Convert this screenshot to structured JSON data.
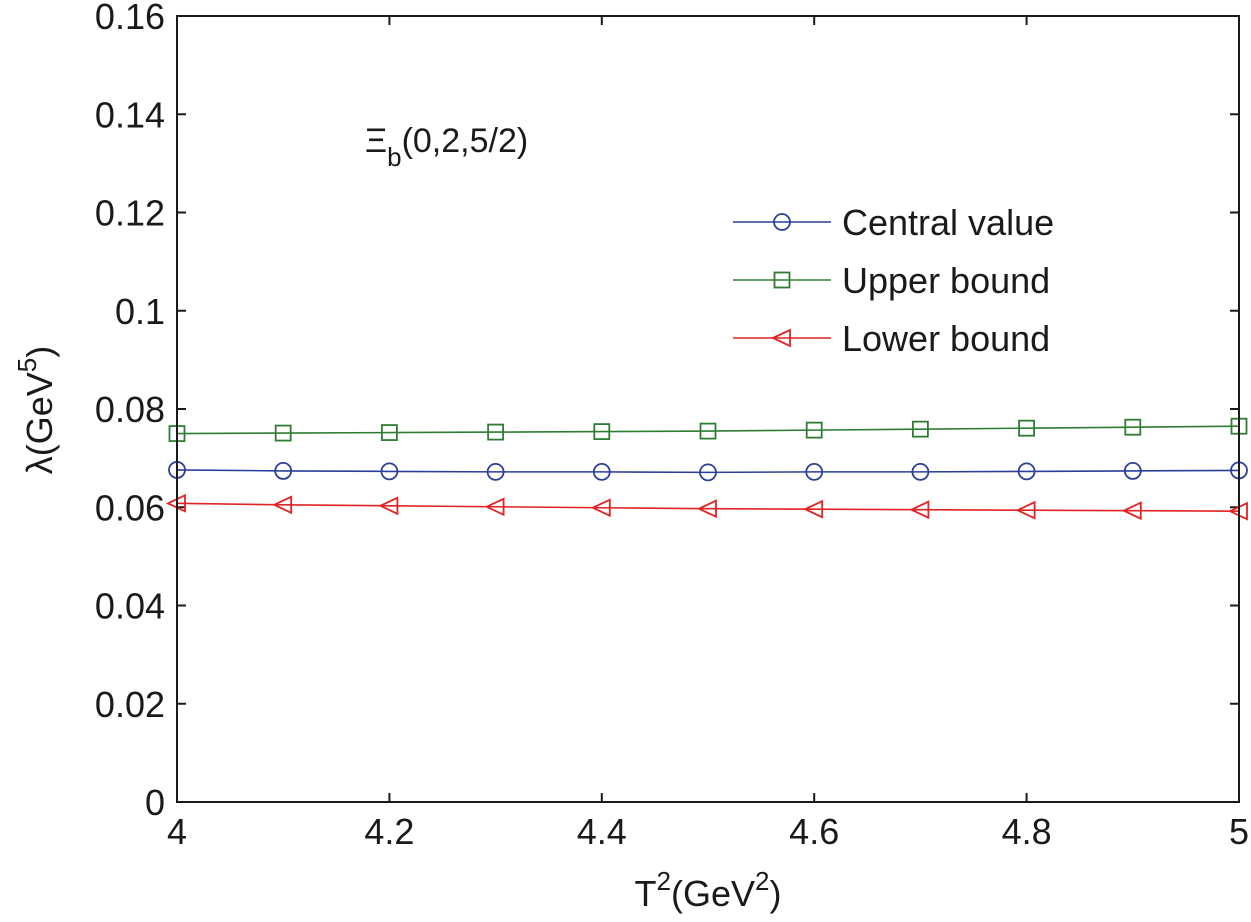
{
  "chart_data": {
    "type": "line",
    "title": "",
    "xlabel": {
      "base": "T",
      "sup": "2",
      "rest": "(GeV",
      "sup2": "2",
      "close": ")"
    },
    "ylabel": {
      "base": "λ(GeV",
      "sup": "5",
      "close": ")"
    },
    "annotation": {
      "main": "Ξ",
      "sub": "b",
      "rest": "(0,2,5/2)"
    },
    "xlim": [
      4,
      5
    ],
    "ylim": [
      0,
      0.16
    ],
    "xticks": [
      4,
      4.2,
      4.4,
      4.6,
      4.8,
      5
    ],
    "xtick_labels": [
      "4",
      "4.2",
      "4.4",
      "4.6",
      "4.8",
      "5"
    ],
    "yticks": [
      0,
      0.02,
      0.04,
      0.06,
      0.08,
      0.1,
      0.12,
      0.14,
      0.16
    ],
    "ytick_labels": [
      "0",
      "0.02",
      "0.04",
      "0.06",
      "0.08",
      "0.1",
      "0.12",
      "0.14",
      "0.16"
    ],
    "x": [
      4.0,
      4.1,
      4.2,
      4.3,
      4.4,
      4.5,
      4.6,
      4.7,
      4.8,
      4.9,
      5.0
    ],
    "series": [
      {
        "name": "Central value",
        "color": "#2b3f9a",
        "marker": "circle",
        "values": [
          0.0676,
          0.0674,
          0.0673,
          0.0672,
          0.0672,
          0.0671,
          0.0672,
          0.0672,
          0.0673,
          0.0674,
          0.0675
        ]
      },
      {
        "name": "Upper bound",
        "color": "#2e7d32",
        "marker": "square",
        "values": [
          0.075,
          0.0751,
          0.0752,
          0.0753,
          0.0754,
          0.0755,
          0.0757,
          0.0759,
          0.0761,
          0.0763,
          0.0765
        ]
      },
      {
        "name": "Lower bound",
        "color": "#e02424",
        "marker": "triangle-left",
        "values": [
          0.0608,
          0.0605,
          0.0603,
          0.0601,
          0.0599,
          0.0597,
          0.0596,
          0.0595,
          0.0594,
          0.0593,
          0.0592
        ]
      }
    ],
    "legend_position": "upper-right"
  }
}
